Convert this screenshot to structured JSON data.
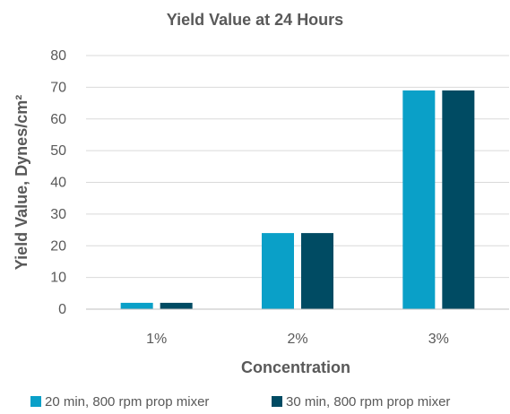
{
  "chart_data": {
    "type": "bar",
    "title": "Yield Value at 24 Hours",
    "xlabel": "Concentration",
    "ylabel": "Yield Value, Dynes/cm²",
    "categories": [
      "1%",
      "2%",
      "3%"
    ],
    "series": [
      {
        "name": "20 min, 800 rpm prop mixer",
        "values": [
          2,
          24,
          69
        ],
        "color": "#0aa0c8"
      },
      {
        "name": "30 min, 800 rpm prop mixer",
        "values": [
          2,
          24,
          69
        ],
        "color": "#004b63"
      }
    ],
    "ylim": [
      0,
      80
    ],
    "yticks": [
      0,
      10,
      20,
      30,
      40,
      50,
      60,
      70,
      80
    ],
    "grid": true,
    "legend_position": "bottom"
  }
}
